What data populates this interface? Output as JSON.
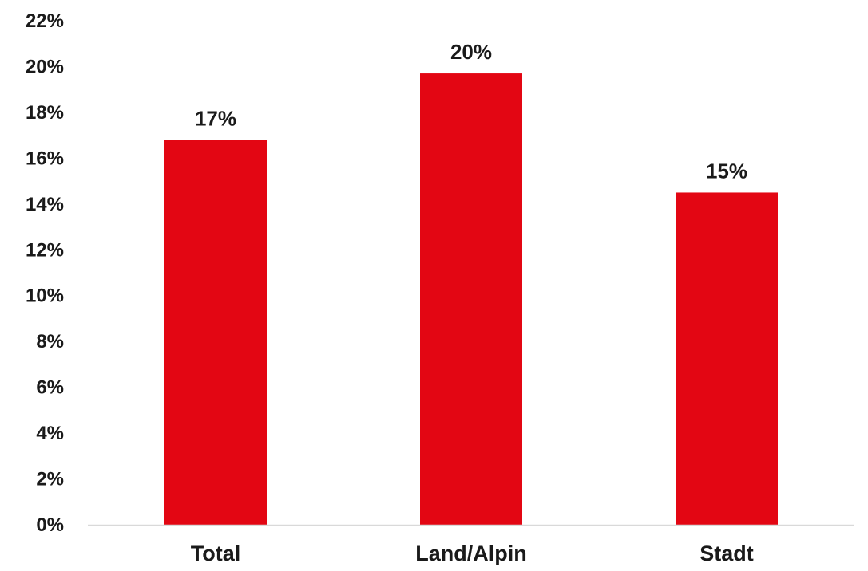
{
  "chart_data": {
    "type": "bar",
    "categories": [
      "Total",
      "Land/Alpin",
      "Stadt"
    ],
    "values": [
      16.8,
      19.7,
      14.5
    ],
    "data_labels": [
      "17%",
      "20%",
      "15%"
    ],
    "y_tick_labels": [
      "0%",
      "2%",
      "4%",
      "6%",
      "8%",
      "10%",
      "12%",
      "14%",
      "16%",
      "18%",
      "20%",
      "22%"
    ],
    "ylim": [
      0,
      22
    ],
    "y_unit": "%",
    "grid": false,
    "legend": "none",
    "bar_color": "#e30613",
    "axis_color": "#d9d9d9",
    "text_color": "#1a1a1a"
  }
}
